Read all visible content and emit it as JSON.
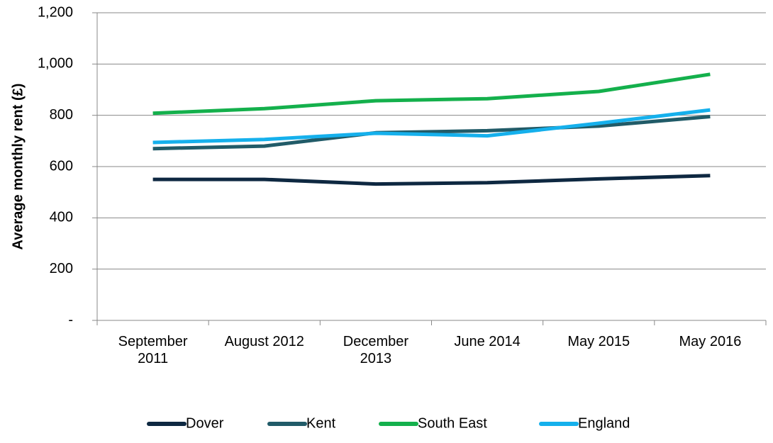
{
  "chart_data": {
    "type": "line",
    "y_label": "Average monthly rent (£)",
    "categories": [
      "September 2011",
      "August 2012",
      "December 2013",
      "June 2014",
      "May 2015",
      "May 2016"
    ],
    "series": [
      {
        "name": "Dover",
        "color": "#0e2841",
        "values": [
          550,
          550,
          532,
          537,
          552,
          565
        ]
      },
      {
        "name": "Kent",
        "color": "#215b68",
        "values": [
          670,
          680,
          732,
          740,
          758,
          795
        ]
      },
      {
        "name": "South East",
        "color": "#14b04c",
        "values": [
          808,
          826,
          857,
          865,
          893,
          960
        ]
      },
      {
        "name": "England",
        "color": "#15b0ec",
        "values": [
          694,
          706,
          730,
          720,
          769,
          821
        ]
      }
    ],
    "ylim": [
      0,
      1200
    ],
    "yticks": [
      {
        "value": 0,
        "label": "-"
      },
      200,
      400,
      600,
      800,
      {
        "value": 1000,
        "label": "1,000"
      },
      {
        "value": 1200,
        "label": "1,200"
      }
    ],
    "grid": true,
    "legend": "bottom"
  }
}
